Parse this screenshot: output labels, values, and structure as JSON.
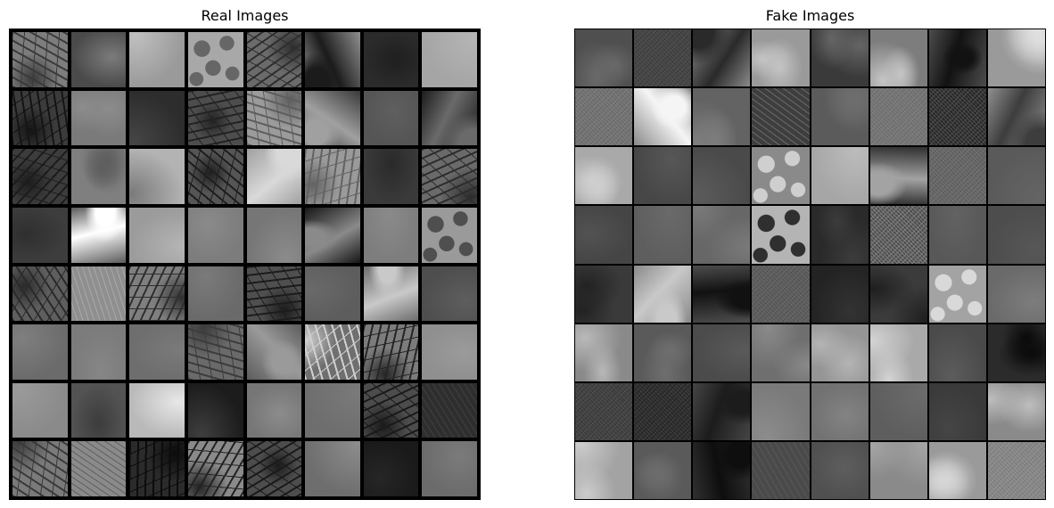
{
  "panels": {
    "real": {
      "title": "Real Images",
      "tiles": [
        {
          "icon": "terrain-drainage-image",
          "base": "#7d7d7d",
          "accent": "#3a3a3a",
          "texture": "branch"
        },
        {
          "icon": "terrain-image",
          "base": "#4a4a4a",
          "accent": "#7b7b7b",
          "texture": "smooth"
        },
        {
          "icon": "terrain-image",
          "base": "#9a9a9a",
          "accent": "#bfbfbf",
          "texture": "smooth"
        },
        {
          "icon": "terrain-dunes-image",
          "base": "#a8a8a8",
          "accent": "#666666",
          "texture": "bumps"
        },
        {
          "icon": "terrain-ridge-image",
          "base": "#6b6b6b",
          "accent": "#2e2e2e",
          "texture": "branch"
        },
        {
          "icon": "terrain-ridge-image",
          "base": "#8f8f8f",
          "accent": "#1b1b1b",
          "texture": "mix"
        },
        {
          "icon": "terrain-image",
          "base": "#2b2b2b",
          "accent": "#1f1f1f",
          "texture": "smooth"
        },
        {
          "icon": "terrain-image",
          "base": "#a5a5a5",
          "accent": "#b5b5b5",
          "texture": "smooth"
        },
        {
          "icon": "terrain-drainage-image",
          "base": "#3b3b3b",
          "accent": "#141414",
          "texture": "branch"
        },
        {
          "icon": "terrain-image",
          "base": "#7a7a7a",
          "accent": "#8c8c8c",
          "texture": "clouds"
        },
        {
          "icon": "terrain-image",
          "base": "#2d2d2d",
          "accent": "#454545",
          "texture": "smooth"
        },
        {
          "icon": "terrain-drainage-image",
          "base": "#4d4d4d",
          "accent": "#222222",
          "texture": "branch"
        },
        {
          "icon": "terrain-drainage-image",
          "base": "#9b9b9b",
          "accent": "#5e5e5e",
          "texture": "branch"
        },
        {
          "icon": "terrain-ridge-image",
          "base": "#3a3a3a",
          "accent": "#a0a0a0",
          "texture": "mix"
        },
        {
          "icon": "terrain-image",
          "base": "#555555",
          "accent": "#5f5f5f",
          "texture": "smooth"
        },
        {
          "icon": "terrain-image",
          "base": "#1c1c1c",
          "accent": "#6a6a6a",
          "texture": "mix"
        },
        {
          "icon": "terrain-drainage-image",
          "base": "#3c3c3c",
          "accent": "#1c1c1c",
          "texture": "branch"
        },
        {
          "icon": "terrain-image",
          "base": "#7f7f7f",
          "accent": "#5e5e5e",
          "texture": "clouds"
        },
        {
          "icon": "terrain-image",
          "base": "#b3b3b3",
          "accent": "#7a7a7a",
          "texture": "smooth"
        },
        {
          "icon": "terrain-drainage-image",
          "base": "#555555",
          "accent": "#1e1e1e",
          "texture": "branch"
        },
        {
          "icon": "terrain-image",
          "base": "#a1a1a1",
          "accent": "#d9d9d9",
          "texture": "mix"
        },
        {
          "icon": "terrain-drainage-image",
          "base": "#9a9a9a",
          "accent": "#636363",
          "texture": "branch"
        },
        {
          "icon": "terrain-image",
          "base": "#3a3a3a",
          "accent": "#2a2a2a",
          "texture": "smooth"
        },
        {
          "icon": "terrain-drainage-image",
          "base": "#6a6a6a",
          "accent": "#2d2d2d",
          "texture": "branch"
        },
        {
          "icon": "terrain-image",
          "base": "#3d3d3d",
          "accent": "#2f2f2f",
          "texture": "smooth"
        },
        {
          "icon": "terrain-ridge-image",
          "base": "#5b5b5b",
          "accent": "#ffffff",
          "texture": "mix"
        },
        {
          "icon": "terrain-image",
          "base": "#9b9b9b",
          "accent": "#b5b5b5",
          "texture": "smooth"
        },
        {
          "icon": "terrain-image",
          "base": "#7c7c7c",
          "accent": "#8a8a8a",
          "texture": "smooth"
        },
        {
          "icon": "terrain-image",
          "base": "#767676",
          "accent": "#8b8b8b",
          "texture": "smooth"
        },
        {
          "icon": "terrain-image",
          "base": "#161616",
          "accent": "#8a8a8a",
          "texture": "mix"
        },
        {
          "icon": "terrain-image",
          "base": "#7d7d7d",
          "accent": "#8a8a8a",
          "texture": "smooth"
        },
        {
          "icon": "terrain-dunes-image",
          "base": "#9a9a9a",
          "accent": "#4f4f4f",
          "texture": "bumps"
        },
        {
          "icon": "terrain-drainage-image",
          "base": "#5e5e5e",
          "accent": "#2a2a2a",
          "texture": "branch"
        },
        {
          "icon": "terrain-image",
          "base": "#8f8f8f",
          "accent": "#a8a8a8",
          "texture": "streaks"
        },
        {
          "icon": "terrain-drainage-image",
          "base": "#7f7f7f",
          "accent": "#2f2f2f",
          "texture": "branch"
        },
        {
          "icon": "terrain-image",
          "base": "#6a6a6a",
          "accent": "#7a7a7a",
          "texture": "smooth"
        },
        {
          "icon": "terrain-drainage-image",
          "base": "#4f4f4f",
          "accent": "#1c1c1c",
          "texture": "branch"
        },
        {
          "icon": "terrain-image",
          "base": "#5d5d5d",
          "accent": "#6a6a6a",
          "texture": "smooth"
        },
        {
          "icon": "terrain-image",
          "base": "#6d6d6d",
          "accent": "#c9c9c9",
          "texture": "mix"
        },
        {
          "icon": "terrain-image",
          "base": "#4e4e4e",
          "accent": "#5e5e5e",
          "texture": "smooth"
        },
        {
          "icon": "terrain-image",
          "base": "#6b6b6b",
          "accent": "#7f7f7f",
          "texture": "smooth"
        },
        {
          "icon": "terrain-image",
          "base": "#7b7b7b",
          "accent": "#868686",
          "texture": "smooth"
        },
        {
          "icon": "terrain-image",
          "base": "#6e6e6e",
          "accent": "#7a7a7a",
          "texture": "smooth"
        },
        {
          "icon": "terrain-drainage-image",
          "base": "#6a6a6a",
          "accent": "#3c3c3c",
          "texture": "branch"
        },
        {
          "icon": "terrain-image",
          "base": "#5c5c5c",
          "accent": "#9a9a9a",
          "texture": "mix"
        },
        {
          "icon": "terrain-ridge-image",
          "base": "#6f6f6f",
          "accent": "#d0d0d0",
          "texture": "branch"
        },
        {
          "icon": "terrain-drainage-image",
          "base": "#7c7c7c",
          "accent": "#252525",
          "texture": "branch"
        },
        {
          "icon": "terrain-image",
          "base": "#8f8f8f",
          "accent": "#9b9b9b",
          "texture": "smooth"
        },
        {
          "icon": "terrain-image",
          "base": "#8a8a8a",
          "accent": "#9a9a9a",
          "texture": "smooth"
        },
        {
          "icon": "terrain-image",
          "base": "#535353",
          "accent": "#3c3c3c",
          "texture": "smooth"
        },
        {
          "icon": "terrain-image",
          "base": "#b9b9b9",
          "accent": "#e7e7e7",
          "texture": "smooth"
        },
        {
          "icon": "terrain-image",
          "base": "#1c1c1c",
          "accent": "#3e3e3e",
          "texture": "smooth"
        },
        {
          "icon": "terrain-image",
          "base": "#767676",
          "accent": "#8c8c8c",
          "texture": "smooth"
        },
        {
          "icon": "terrain-image",
          "base": "#6e6e6e",
          "accent": "#7a7a7a",
          "texture": "smooth"
        },
        {
          "icon": "terrain-drainage-image",
          "base": "#4c4c4c",
          "accent": "#1a1a1a",
          "texture": "branch"
        },
        {
          "icon": "terrain-image",
          "base": "#2e2e2e",
          "accent": "#404040",
          "texture": "streaks"
        },
        {
          "icon": "terrain-drainage-image",
          "base": "#7a7a7a",
          "accent": "#3a3a3a",
          "texture": "branch"
        },
        {
          "icon": "terrain-image",
          "base": "#8a8a8a",
          "accent": "#5f5f5f",
          "texture": "streaks"
        },
        {
          "icon": "terrain-drainage-image",
          "base": "#2b2b2b",
          "accent": "#0c0c0c",
          "texture": "branch"
        },
        {
          "icon": "terrain-drainage-image",
          "base": "#8a8a8a",
          "accent": "#232323",
          "texture": "branch"
        },
        {
          "icon": "terrain-drainage-image",
          "base": "#4d4d4d",
          "accent": "#1a1a1a",
          "texture": "branch"
        },
        {
          "icon": "terrain-image",
          "base": "#6e6e6e",
          "accent": "#8c8c8c",
          "texture": "smooth"
        },
        {
          "icon": "terrain-image",
          "base": "#1a1a1a",
          "accent": "#262626",
          "texture": "smooth"
        },
        {
          "icon": "terrain-image",
          "base": "#6b6b6b",
          "accent": "#7b7b7b",
          "texture": "smooth"
        }
      ]
    },
    "fake": {
      "title": "Fake Images",
      "tiles": [
        {
          "icon": "generated-terrain-image",
          "base": "#4f4f4f",
          "accent": "#6a6a6a",
          "texture": "clouds"
        },
        {
          "icon": "generated-terrain-image",
          "base": "#3e3e3e",
          "accent": "#4e4e4e",
          "texture": "noise"
        },
        {
          "icon": "generated-terrain-image",
          "base": "#8a8a8a",
          "accent": "#2a2a2a",
          "texture": "mix"
        },
        {
          "icon": "generated-terrain-image",
          "base": "#9a9a9a",
          "accent": "#c4c4c4",
          "texture": "clouds"
        },
        {
          "icon": "generated-terrain-image",
          "base": "#3a3a3a",
          "accent": "#656565",
          "texture": "clouds"
        },
        {
          "icon": "generated-terrain-image",
          "base": "#7d7d7d",
          "accent": "#c5c5c5",
          "texture": "clouds"
        },
        {
          "icon": "generated-terrain-image",
          "base": "#4c4c4c",
          "accent": "#121212",
          "texture": "mix"
        },
        {
          "icon": "generated-terrain-image",
          "base": "#9a9a9a",
          "accent": "#e0e0e0",
          "texture": "clouds"
        },
        {
          "icon": "generated-terrain-image",
          "base": "#6a6a6a",
          "accent": "#7c7c7c",
          "texture": "noise"
        },
        {
          "icon": "generated-terrain-image",
          "base": "#8a8a8a",
          "accent": "#f5f5f5",
          "texture": "mix"
        },
        {
          "icon": "generated-terrain-image",
          "base": "#636363",
          "accent": "#7d7d7d",
          "texture": "clouds"
        },
        {
          "icon": "generated-terrain-image",
          "base": "#3e3e3e",
          "accent": "#6a6a6a",
          "texture": "streaks"
        },
        {
          "icon": "generated-terrain-image",
          "base": "#5b5b5b",
          "accent": "#6d6d6d",
          "texture": "clouds"
        },
        {
          "icon": "generated-terrain-image",
          "base": "#6e6e6e",
          "accent": "#7d7d7d",
          "texture": "noise"
        },
        {
          "icon": "generated-terrain-image",
          "base": "#262626",
          "accent": "#4a4a4a",
          "texture": "noise"
        },
        {
          "icon": "generated-terrain-image",
          "base": "#8f8f8f",
          "accent": "#3d3d3d",
          "texture": "mix"
        },
        {
          "icon": "generated-terrain-image",
          "base": "#a9a9a9",
          "accent": "#cfcfcf",
          "texture": "clouds"
        },
        {
          "icon": "generated-terrain-image",
          "base": "#474747",
          "accent": "#575757",
          "texture": "smooth"
        },
        {
          "icon": "generated-terrain-image",
          "base": "#4a4a4a",
          "accent": "#5c5c5c",
          "texture": "smooth"
        },
        {
          "icon": "generated-terrain-image",
          "base": "#8a8a8a",
          "accent": "#cfcfcf",
          "texture": "bumps"
        },
        {
          "icon": "generated-terrain-image",
          "base": "#a6a6a6",
          "accent": "#bcbcbc",
          "texture": "smooth"
        },
        {
          "icon": "generated-terrain-image",
          "base": "#303030",
          "accent": "#a3a3a3",
          "texture": "mix"
        },
        {
          "icon": "generated-terrain-image",
          "base": "#5e5e5e",
          "accent": "#717171",
          "texture": "noise"
        },
        {
          "icon": "generated-terrain-image",
          "base": "#5a5a5a",
          "accent": "#646464",
          "texture": "smooth"
        },
        {
          "icon": "generated-terrain-image",
          "base": "#454545",
          "accent": "#525252",
          "texture": "smooth"
        },
        {
          "icon": "generated-terrain-image",
          "base": "#5e5e5e",
          "accent": "#6a6a6a",
          "texture": "smooth"
        },
        {
          "icon": "generated-terrain-image",
          "base": "#676767",
          "accent": "#7a7a7a",
          "texture": "clouds"
        },
        {
          "icon": "generated-terrain-image",
          "base": "#b4b4b4",
          "accent": "#2f2f2f",
          "texture": "bumps"
        },
        {
          "icon": "generated-terrain-image",
          "base": "#2a2a2a",
          "accent": "#3c3c3c",
          "texture": "clouds"
        },
        {
          "icon": "generated-terrain-image",
          "base": "#4c4c4c",
          "accent": "#7b7b7b",
          "texture": "noise"
        },
        {
          "icon": "generated-terrain-image",
          "base": "#585858",
          "accent": "#626262",
          "texture": "smooth"
        },
        {
          "icon": "generated-terrain-image",
          "base": "#4d4d4d",
          "accent": "#575757",
          "texture": "smooth"
        },
        {
          "icon": "generated-terrain-image",
          "base": "#3a3a3a",
          "accent": "#222222",
          "texture": "clouds"
        },
        {
          "icon": "generated-terrain-image",
          "base": "#8a8a8a",
          "accent": "#c9c9c9",
          "texture": "mix"
        },
        {
          "icon": "generated-terrain-image",
          "base": "#4d4d4d",
          "accent": "#111111",
          "texture": "mix"
        },
        {
          "icon": "generated-terrain-image",
          "base": "#555555",
          "accent": "#666666",
          "texture": "noise"
        },
        {
          "icon": "generated-terrain-image",
          "base": "#232323",
          "accent": "#333333",
          "texture": "smooth"
        },
        {
          "icon": "generated-terrain-image",
          "base": "#3b3b3b",
          "accent": "#1f1f1f",
          "texture": "clouds"
        },
        {
          "icon": "generated-terrain-image",
          "base": "#a3a3a3",
          "accent": "#d9d9d9",
          "texture": "bumps"
        },
        {
          "icon": "generated-terrain-image",
          "base": "#6a6a6a",
          "accent": "#7d7d7d",
          "texture": "smooth"
        },
        {
          "icon": "generated-terrain-image",
          "base": "#8a8a8a",
          "accent": "#b9b9b9",
          "texture": "clouds"
        },
        {
          "icon": "generated-terrain-image",
          "base": "#5a5a5a",
          "accent": "#6f6f6f",
          "texture": "clouds"
        },
        {
          "icon": "generated-terrain-image",
          "base": "#4b4b4b",
          "accent": "#5a5a5a",
          "texture": "smooth"
        },
        {
          "icon": "generated-terrain-image",
          "base": "#6f6f6f",
          "accent": "#8a8a8a",
          "texture": "clouds"
        },
        {
          "icon": "generated-terrain-image",
          "base": "#959595",
          "accent": "#b4b4b4",
          "texture": "clouds"
        },
        {
          "icon": "generated-terrain-image",
          "base": "#a9a9a9",
          "accent": "#d4d4d4",
          "texture": "clouds"
        },
        {
          "icon": "generated-terrain-image",
          "base": "#4a4a4a",
          "accent": "#5c5c5c",
          "texture": "smooth"
        },
        {
          "icon": "generated-terrain-image",
          "base": "#2b2b2b",
          "accent": "#0a0a0a",
          "texture": "clouds"
        },
        {
          "icon": "generated-terrain-image",
          "base": "#3a3a3a",
          "accent": "#4c4c4c",
          "texture": "noise"
        },
        {
          "icon": "generated-terrain-image",
          "base": "#3c3c3c",
          "accent": "#262626",
          "texture": "noise"
        },
        {
          "icon": "generated-terrain-image",
          "base": "#454545",
          "accent": "#1c1c1c",
          "texture": "mix"
        },
        {
          "icon": "generated-terrain-image",
          "base": "#7a7a7a",
          "accent": "#8c8c8c",
          "texture": "smooth"
        },
        {
          "icon": "generated-terrain-image",
          "base": "#727272",
          "accent": "#838383",
          "texture": "smooth"
        },
        {
          "icon": "generated-terrain-image",
          "base": "#5e5e5e",
          "accent": "#6c6c6c",
          "texture": "smooth"
        },
        {
          "icon": "generated-terrain-image",
          "base": "#3a3a3a",
          "accent": "#454545",
          "texture": "smooth"
        },
        {
          "icon": "generated-terrain-image",
          "base": "#8a8a8a",
          "accent": "#bebebe",
          "texture": "clouds"
        },
        {
          "icon": "generated-terrain-image",
          "base": "#a3a3a3",
          "accent": "#cdcdcd",
          "texture": "clouds"
        },
        {
          "icon": "generated-terrain-image",
          "base": "#5a5a5a",
          "accent": "#6c6c6c",
          "texture": "clouds"
        },
        {
          "icon": "generated-terrain-image",
          "base": "#303030",
          "accent": "#0e0e0e",
          "texture": "mix"
        },
        {
          "icon": "generated-terrain-image",
          "base": "#4a4a4a",
          "accent": "#585858",
          "texture": "streaks"
        },
        {
          "icon": "generated-terrain-image",
          "base": "#505050",
          "accent": "#5e5e5e",
          "texture": "smooth"
        },
        {
          "icon": "generated-terrain-image",
          "base": "#8a8a8a",
          "accent": "#a4a4a4",
          "texture": "clouds"
        },
        {
          "icon": "generated-terrain-image",
          "base": "#9a9a9a",
          "accent": "#d6d6d6",
          "texture": "clouds"
        },
        {
          "icon": "generated-terrain-image",
          "base": "#7e7e7e",
          "accent": "#909090",
          "texture": "noise"
        }
      ]
    }
  }
}
